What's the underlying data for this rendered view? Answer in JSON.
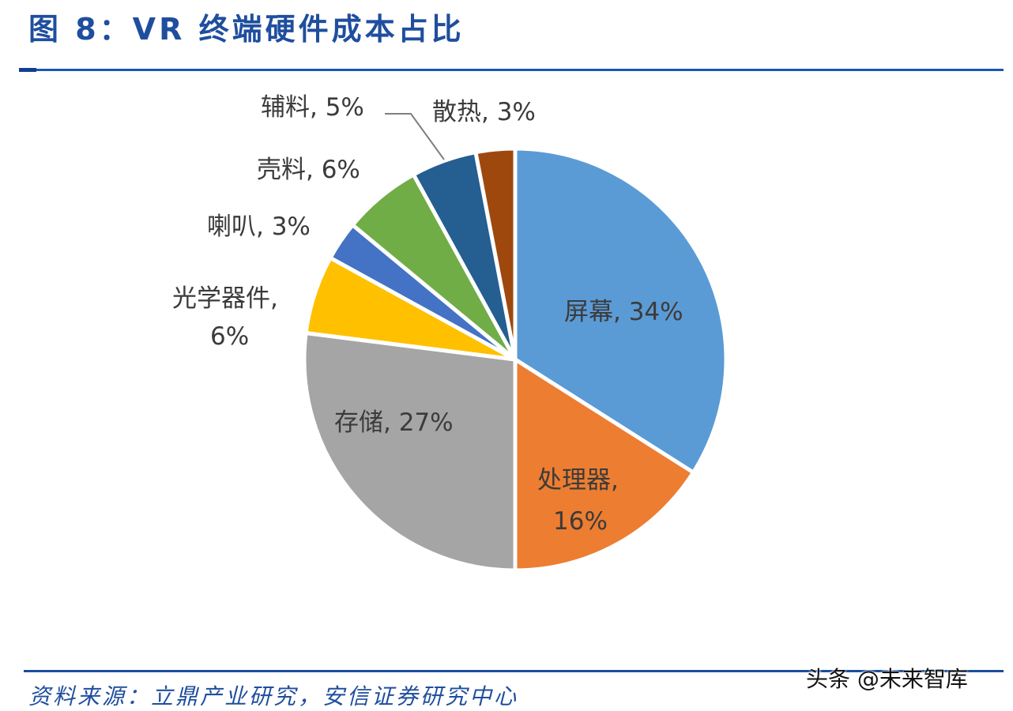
{
  "header": {
    "title": "图 8：VR 终端硬件成本占比"
  },
  "footer": {
    "source": "资料来源：立鼎产业研究，安信证券研究中心",
    "watermark": "头条 @未来智库"
  },
  "chart_data": {
    "type": "pie",
    "title": "VR终端硬件成本占比",
    "start_angle": "12 o'clock, clockwise",
    "categories": [
      "屏幕",
      "处理器",
      "存储",
      "光学器件",
      "喇叭",
      "壳料",
      "辅料",
      "散热"
    ],
    "values": [
      34,
      16,
      27,
      6,
      3,
      6,
      5,
      3
    ],
    "unit": "%",
    "colors": [
      "#5b9bd5",
      "#ed7d31",
      "#a5a5a5",
      "#ffc000",
      "#4472c4",
      "#70ad47",
      "#255e91",
      "#9e480e"
    ],
    "data_labels": [
      "屏幕, 34%",
      "处理器, 16%",
      "存储, 27%",
      "光学器件, 6%",
      "喇叭, 3%",
      "壳料, 6%",
      "辅料, 5%",
      "散热, 3%"
    ],
    "legend": "none (data labels on/near slices)"
  },
  "labels": {
    "screen": "屏幕, 34%",
    "cpu_line1": "处理器,",
    "cpu_line2": "16%",
    "storage": "存储, 27%",
    "optics_line1": "光学器件,",
    "optics_line2": "6%",
    "speaker": "喇叭, 3%",
    "shell": "壳料, 6%",
    "aux": "辅料, 5%",
    "cooling": "散热, 3%"
  }
}
